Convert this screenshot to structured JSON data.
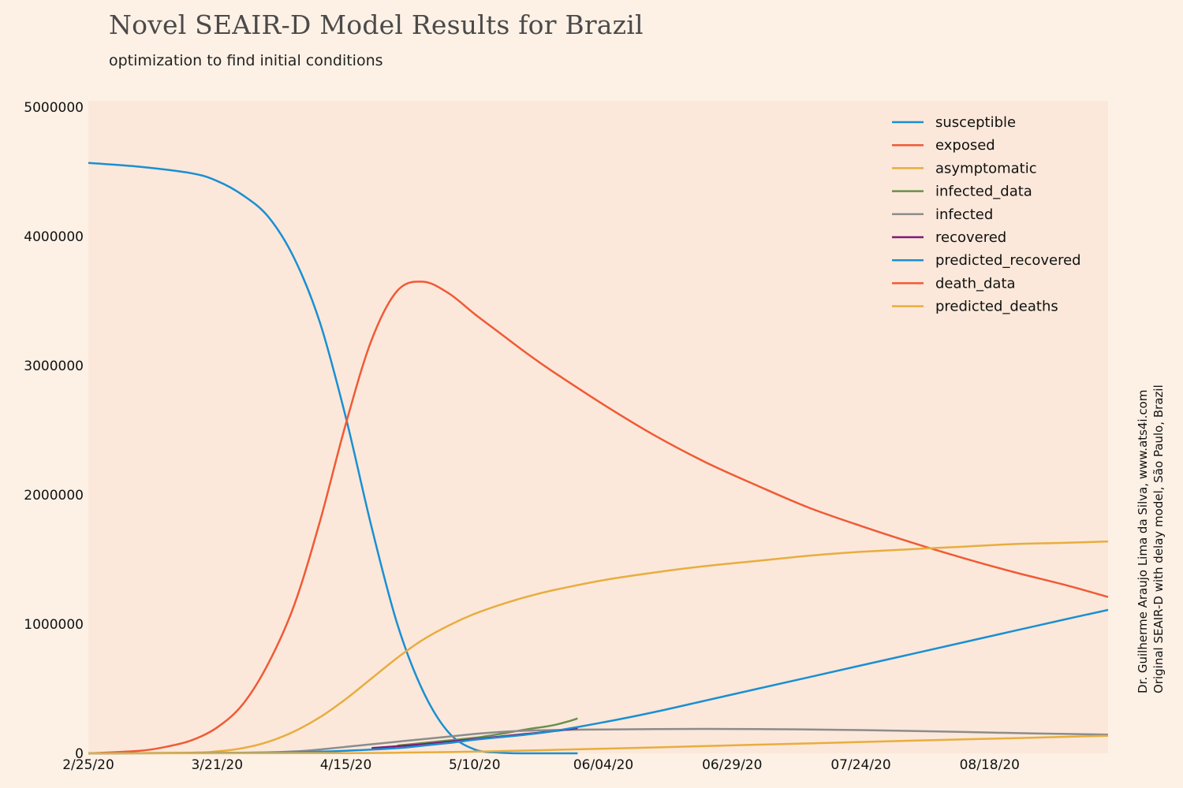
{
  "title": "Novel SEAIR-D Model Results for Brazil",
  "subtitle": "optimization to find initial conditions",
  "credit": [
    "Dr. Guilherme Araujo Lima da Silva, www.ats4i.com",
    "Original SEAIR-D with delay model, São Paulo, Brazil"
  ],
  "colors": {
    "background": "#fdf1e6",
    "plot_background": "#fbe8da"
  },
  "chart_data": {
    "type": "line",
    "x_tick_labels": [
      "2/25/20",
      "3/21/20",
      "4/15/20",
      "5/10/20",
      "06/04/20",
      "06/29/20",
      "07/24/20",
      "08/18/20"
    ],
    "x_tick_days": [
      0,
      25,
      50,
      75,
      100,
      125,
      150,
      175
    ],
    "x_range": [
      0,
      198
    ],
    "y_tick_labels": [
      "0",
      "1000000",
      "2000000",
      "3000000",
      "4000000",
      "5000000"
    ],
    "y_tick_values": [
      0,
      1000000,
      2000000,
      3000000,
      4000000,
      5000000
    ],
    "y_range": [
      0,
      5050000
    ],
    "legend_position": "top-right",
    "series": [
      {
        "name": "susceptible",
        "color": "#1a8fd3",
        "x": [
          0,
          10,
          20,
          25,
          30,
          35,
          40,
          45,
          50,
          55,
          60,
          65,
          70,
          75,
          80,
          85,
          90,
          95
        ],
        "y": [
          4570000,
          4540000,
          4490000,
          4430000,
          4320000,
          4150000,
          3830000,
          3330000,
          2600000,
          1750000,
          1000000,
          480000,
          160000,
          30000,
          5000,
          0,
          0,
          0
        ]
      },
      {
        "name": "exposed",
        "color": "#f05a36",
        "x": [
          0,
          10,
          15,
          20,
          25,
          30,
          35,
          40,
          45,
          50,
          55,
          60,
          65,
          70,
          75,
          80,
          85,
          90,
          100,
          110,
          120,
          130,
          140,
          150,
          160,
          170,
          180,
          190,
          198
        ],
        "y": [
          0,
          20000,
          50000,
          100000,
          200000,
          380000,
          700000,
          1150000,
          1800000,
          2550000,
          3200000,
          3580000,
          3650000,
          3560000,
          3400000,
          3250000,
          3100000,
          2960000,
          2700000,
          2460000,
          2250000,
          2070000,
          1900000,
          1760000,
          1630000,
          1510000,
          1400000,
          1300000,
          1210000
        ]
      },
      {
        "name": "asymptomatic",
        "color": "#e8ad3e",
        "x": [
          0,
          20,
          25,
          30,
          35,
          40,
          45,
          50,
          55,
          60,
          65,
          70,
          75,
          80,
          85,
          90,
          100,
          110,
          120,
          130,
          140,
          150,
          160,
          170,
          180,
          190,
          198
        ],
        "y": [
          0,
          5000,
          15000,
          40000,
          90000,
          170000,
          280000,
          420000,
          580000,
          740000,
          880000,
          990000,
          1080000,
          1150000,
          1210000,
          1260000,
          1340000,
          1400000,
          1450000,
          1490000,
          1530000,
          1560000,
          1580000,
          1600000,
          1620000,
          1630000,
          1640000
        ]
      },
      {
        "name": "infected_data",
        "color": "#6a8f4c",
        "x": [
          60,
          65,
          70,
          75,
          80,
          85,
          90,
          93,
          95
        ],
        "y": [
          60000,
          80000,
          100000,
          120000,
          150000,
          185000,
          215000,
          245000,
          270000
        ]
      },
      {
        "name": "infected",
        "color": "#8c8c8c",
        "x": [
          0,
          30,
          40,
          45,
          50,
          55,
          60,
          65,
          70,
          75,
          80,
          85,
          90,
          100,
          110,
          120,
          130,
          140,
          150,
          160,
          170,
          180,
          190,
          198
        ],
        "y": [
          0,
          5000,
          15000,
          30000,
          50000,
          70000,
          90000,
          110000,
          130000,
          150000,
          165000,
          175000,
          180000,
          185000,
          188000,
          189000,
          188000,
          185000,
          180000,
          173000,
          165000,
          157000,
          150000,
          145000
        ]
      },
      {
        "name": "recovered",
        "color": "#7d1a78",
        "x": [
          55,
          60,
          65,
          70,
          75,
          80,
          85,
          90,
          93,
          95
        ],
        "y": [
          40000,
          55000,
          70000,
          90000,
          110000,
          130000,
          150000,
          170000,
          185000,
          195000
        ]
      },
      {
        "name": "predicted_recovered",
        "color": "#1a8fd3",
        "x": [
          0,
          30,
          40,
          50,
          60,
          65,
          70,
          75,
          80,
          85,
          90,
          100,
          110,
          120,
          130,
          140,
          150,
          160,
          170,
          180,
          190,
          198
        ],
        "y": [
          0,
          3000,
          8000,
          20000,
          40000,
          60000,
          80000,
          105000,
          125000,
          145000,
          170000,
          240000,
          320000,
          410000,
          500000,
          590000,
          680000,
          770000,
          860000,
          950000,
          1040000,
          1110000
        ]
      },
      {
        "name": "death_data",
        "color": "#f05a36",
        "x": [
          0
        ],
        "y": [
          0
        ]
      },
      {
        "name": "predicted_deaths",
        "color": "#e8ad3e",
        "x": [
          0,
          50,
          60,
          70,
          80,
          90,
          100,
          110,
          120,
          130,
          140,
          150,
          160,
          170,
          180,
          190,
          198
        ],
        "y": [
          0,
          2000,
          5000,
          10000,
          17000,
          26000,
          36000,
          46000,
          57000,
          67000,
          77000,
          88000,
          98000,
          108000,
          118000,
          128000,
          136000
        ]
      }
    ]
  }
}
